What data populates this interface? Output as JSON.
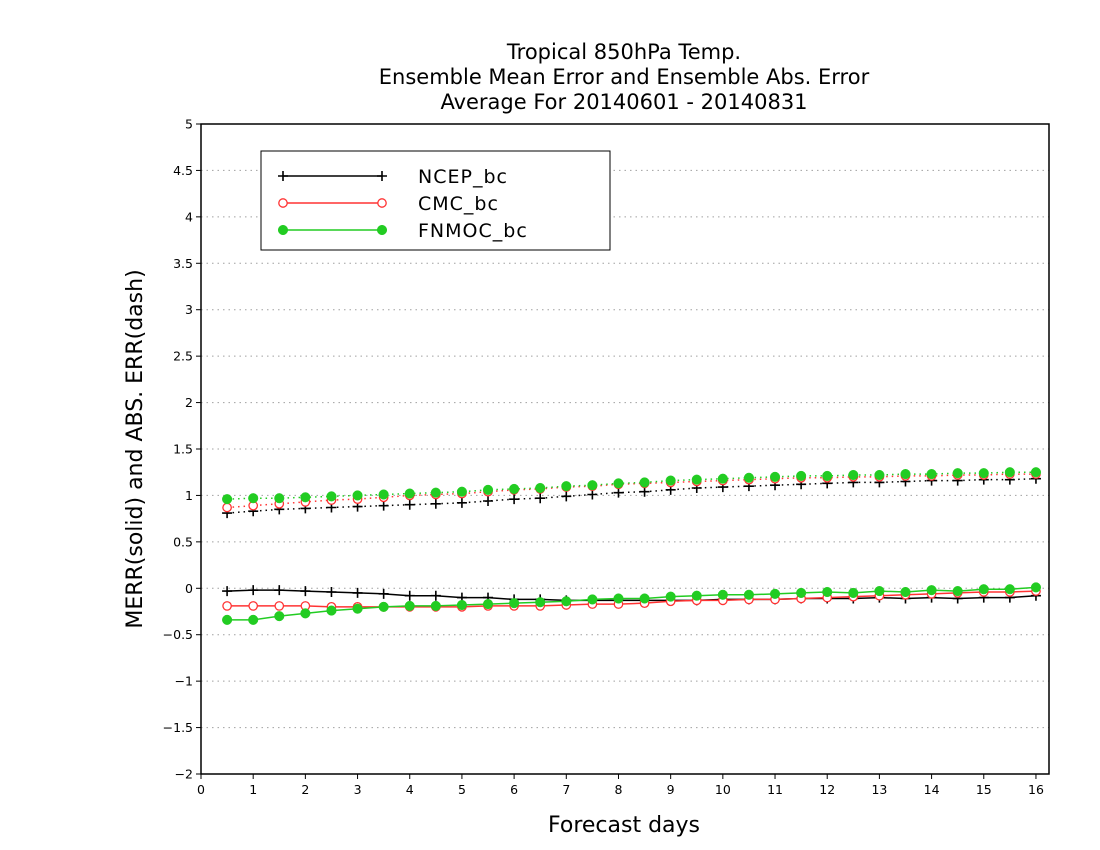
{
  "chart_data": {
    "type": "line",
    "title_lines": [
      "Tropical 850hPa Temp.",
      "Ensemble Mean Error and Ensemble Abs. Error",
      "Average For 20140601 - 20140831"
    ],
    "xlabel": "Forecast days",
    "ylabel": "MERR(solid) and ABS. ERR(dash)",
    "xlim": [
      0,
      16.25
    ],
    "ylim": [
      -2,
      5
    ],
    "xticks": [
      0,
      1,
      2,
      3,
      4,
      5,
      6,
      7,
      8,
      9,
      10,
      11,
      12,
      13,
      14,
      15,
      16
    ],
    "yticks": [
      -2,
      -1.5,
      -1,
      -0.5,
      0,
      0.5,
      1,
      1.5,
      2,
      2.5,
      3,
      3.5,
      4,
      4.5,
      5
    ],
    "ytick_labels": [
      "−2",
      "−1.5",
      "−1",
      "−0.5",
      "0",
      "0.5",
      "1",
      "1.5",
      "2",
      "2.5",
      "3",
      "3.5",
      "4",
      "4.5",
      "5"
    ],
    "grid": "horizontal dotted",
    "legend_position": "top-left",
    "x": [
      0.5,
      1,
      1.5,
      2,
      2.5,
      3,
      3.5,
      4,
      4.5,
      5,
      5.5,
      6,
      6.5,
      7,
      7.5,
      8,
      8.5,
      9,
      9.5,
      10,
      10.5,
      11,
      11.5,
      12,
      12.5,
      13,
      13.5,
      14,
      14.5,
      15,
      15.5,
      16
    ],
    "series": [
      {
        "name": "NCEP_bc",
        "color": "#000000",
        "marker": "plus",
        "merr": [
          -0.03,
          -0.02,
          -0.02,
          -0.03,
          -0.04,
          -0.05,
          -0.06,
          -0.08,
          -0.08,
          -0.1,
          -0.1,
          -0.12,
          -0.12,
          -0.13,
          -0.13,
          -0.13,
          -0.13,
          -0.13,
          -0.13,
          -0.12,
          -0.12,
          -0.12,
          -0.11,
          -0.11,
          -0.11,
          -0.1,
          -0.11,
          -0.1,
          -0.11,
          -0.1,
          -0.1,
          -0.08
        ],
        "abs_err": [
          0.81,
          0.83,
          0.85,
          0.86,
          0.87,
          0.88,
          0.89,
          0.9,
          0.91,
          0.92,
          0.94,
          0.96,
          0.97,
          0.99,
          1.01,
          1.03,
          1.04,
          1.06,
          1.08,
          1.09,
          1.1,
          1.11,
          1.12,
          1.13,
          1.14,
          1.14,
          1.15,
          1.16,
          1.16,
          1.17,
          1.17,
          1.18
        ]
      },
      {
        "name": "CMC_bc",
        "color": "#ff3333",
        "marker": "open-circle",
        "merr": [
          -0.19,
          -0.19,
          -0.19,
          -0.19,
          -0.2,
          -0.2,
          -0.2,
          -0.2,
          -0.2,
          -0.2,
          -0.19,
          -0.19,
          -0.19,
          -0.18,
          -0.17,
          -0.17,
          -0.16,
          -0.14,
          -0.13,
          -0.13,
          -0.12,
          -0.12,
          -0.11,
          -0.1,
          -0.09,
          -0.08,
          -0.07,
          -0.06,
          -0.05,
          -0.04,
          -0.04,
          -0.03
        ],
        "abs_err": [
          0.87,
          0.89,
          0.91,
          0.93,
          0.95,
          0.96,
          0.98,
          1.0,
          1.01,
          1.02,
          1.04,
          1.06,
          1.07,
          1.09,
          1.1,
          1.12,
          1.13,
          1.14,
          1.15,
          1.16,
          1.17,
          1.18,
          1.19,
          1.19,
          1.2,
          1.2,
          1.21,
          1.21,
          1.22,
          1.22,
          1.23,
          1.23
        ]
      },
      {
        "name": "FNMOC_bc",
        "color": "#22cc22",
        "marker": "filled-circle",
        "merr": [
          -0.34,
          -0.34,
          -0.3,
          -0.27,
          -0.24,
          -0.22,
          -0.2,
          -0.19,
          -0.19,
          -0.18,
          -0.17,
          -0.16,
          -0.15,
          -0.14,
          -0.12,
          -0.11,
          -0.11,
          -0.09,
          -0.08,
          -0.07,
          -0.07,
          -0.06,
          -0.05,
          -0.04,
          -0.05,
          -0.03,
          -0.04,
          -0.02,
          -0.03,
          -0.01,
          -0.01,
          0.01
        ],
        "abs_err": [
          0.96,
          0.97,
          0.97,
          0.98,
          0.99,
          1.0,
          1.01,
          1.02,
          1.03,
          1.04,
          1.06,
          1.07,
          1.08,
          1.1,
          1.11,
          1.13,
          1.14,
          1.16,
          1.17,
          1.18,
          1.19,
          1.2,
          1.21,
          1.21,
          1.22,
          1.22,
          1.23,
          1.23,
          1.24,
          1.24,
          1.25,
          1.25
        ]
      }
    ]
  }
}
